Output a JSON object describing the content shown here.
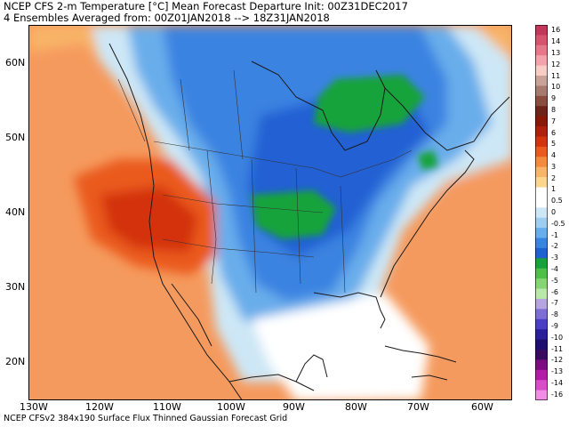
{
  "title": {
    "line1": "NCEP CFS 2-m Temperature [°C] Mean Forecast Departure Init: 00Z31DEC2017",
    "line2": "4 Ensembles Averaged from: 00Z01JAN2018 --> 18Z31JAN2018"
  },
  "footer": "NCEP CFSv2 384x190 Surface Flux Thinned Gaussian Forecast Grid",
  "lat_labels": [
    "60N",
    "50N",
    "40N",
    "30N",
    "20N"
  ],
  "lon_labels": [
    "130W",
    "120W",
    "110W",
    "100W",
    "90W",
    "80W",
    "70W",
    "60W"
  ],
  "colorbar": {
    "labels": [
      "16",
      "14",
      "13",
      "12",
      "11",
      "10",
      "9",
      "8",
      "7",
      "6",
      "5",
      "4",
      "3",
      "2",
      "1",
      "0.5",
      "0",
      "-0.5",
      "-1",
      "-2",
      "-3",
      "-4",
      "-5",
      "-6",
      "-7",
      "-8",
      "-9",
      "-10",
      "-11",
      "-12",
      "-13",
      "-14",
      "-16"
    ],
    "colors": [
      "#c2375a",
      "#d6546e",
      "#e6788a",
      "#f2a3ac",
      "#f8cdc6",
      "#c9a29a",
      "#a77a6f",
      "#8a4d3f",
      "#6e2418",
      "#8a1808",
      "#b01e0c",
      "#d3330f",
      "#ea5a1e",
      "#f48a3c",
      "#f8b468",
      "#fbd690",
      "#ffffff",
      "#ffffff",
      "#cde7f6",
      "#9fcdef",
      "#69adeb",
      "#3a83e1",
      "#2160d3",
      "#17a33a",
      "#4ec04a",
      "#85d673",
      "#b9e8a8",
      "#b4a4df",
      "#7d6ed4",
      "#4a3ec4",
      "#2c1f9c",
      "#1e0f6e",
      "#3a0a60",
      "#7b0d80",
      "#b21ca6",
      "#d94cc8",
      "#f08de4"
    ]
  },
  "colors": {
    "warm_anomaly": "#f08a4e",
    "strong_warm": "#d3330f",
    "cold_anomaly": "#3a83e1",
    "strong_cold": "#2160d3",
    "very_cold": "#17a33a"
  }
}
